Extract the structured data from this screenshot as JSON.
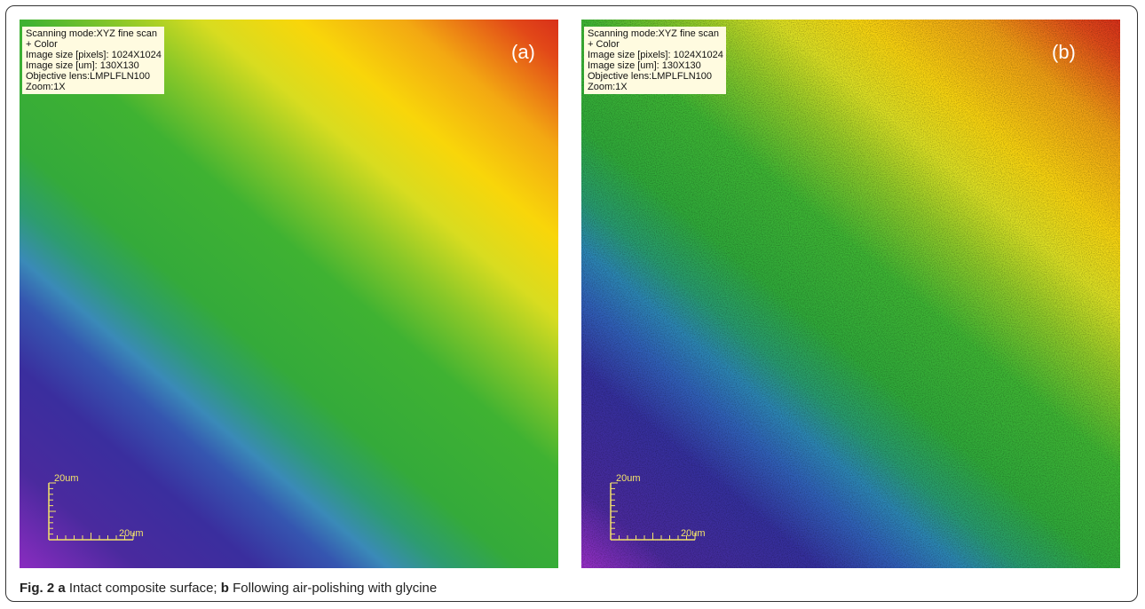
{
  "panels": [
    {
      "label": "(a)",
      "info": [
        "Scanning mode:XYZ fine scan",
        "+ Color",
        "Image size [pixels]: 1024X1024",
        "Image size [um]: 130X130",
        "Objective lens:LMPLFLN100",
        "Zoom:1X"
      ],
      "scale_bar": {
        "vertical": "20um",
        "horizontal": "20um"
      }
    },
    {
      "label": "(b)",
      "info": [
        "Scanning mode:XYZ fine scan",
        "+ Color",
        "Image size [pixels]: 1024X1024",
        "Image size [um]: 130X130",
        "Objective lens:LMPLFLN100",
        "Zoom:1X"
      ],
      "scale_bar": {
        "vertical": "20um",
        "horizontal": "20um"
      }
    }
  ],
  "caption": {
    "figure": "Fig. 2",
    "parts": [
      {
        "letter": "a",
        "text": "Intact composite surface;"
      },
      {
        "letter": "b",
        "text": "Following air-polishing with glycine"
      }
    ]
  }
}
